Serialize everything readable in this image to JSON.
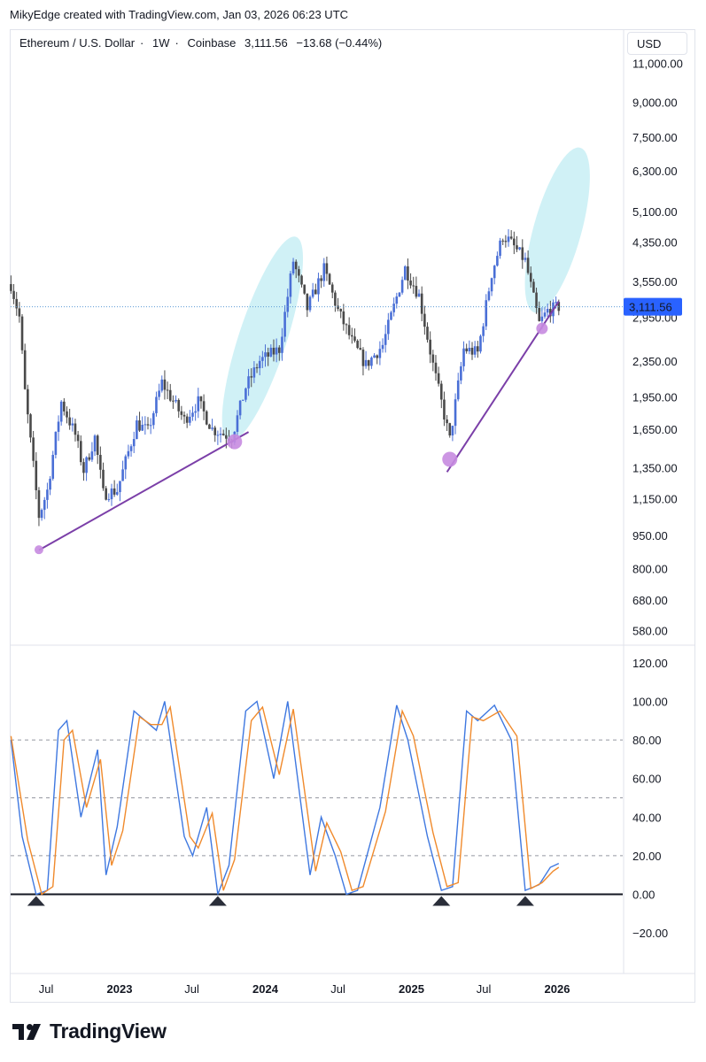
{
  "header": {
    "created_by": "MikyEdge created with TradingView.com, Jan 03, 2026 06:23 UTC"
  },
  "legend": {
    "symbol": "Ethereum / U.S. Dollar",
    "interval": "1W",
    "exchange": "Coinbase",
    "price": "3,111.56",
    "change": "−13.68 (−0.44%)"
  },
  "currency_button": "USD",
  "footer": {
    "brand": "TradingView"
  },
  "colors": {
    "up": "#4a6fd6",
    "down": "#4a4a4a",
    "trendline": "#7b3fa8",
    "touch_circle": "#c78be0",
    "ellipse": "#c8eef5",
    "stoch_k": "#3f78e0",
    "stoch_d": "#f08a2c",
    "price_label": "#2962ff"
  },
  "chart_data": [
    {
      "type": "candlestick",
      "scale": "log",
      "ylim": [
        540,
        11500
      ],
      "price_ticks": [
        "11,000.00",
        "9,000.00",
        "7,500.00",
        "6,300.00",
        "5,100.00",
        "4,350.00",
        "3,550.00",
        "2,950.00",
        "2,350.00",
        "1,950.00",
        "1,650.00",
        "1,350.00",
        "1,150.00",
        "950.00",
        "800.00",
        "680.00",
        "580.00"
      ],
      "price_tick_values": [
        11000,
        9000,
        7500,
        6300,
        5100,
        4350,
        3550,
        2950,
        2350,
        1950,
        1650,
        1350,
        1150,
        950,
        800,
        680,
        580
      ],
      "last_price_label": "3,111.56",
      "last_price": 3111.56,
      "time_labels": [
        {
          "text": "Jul",
          "date": "2022-07-01",
          "bold": false
        },
        {
          "text": "2023",
          "date": "2023-01-01",
          "bold": true
        },
        {
          "text": "Jul",
          "date": "2023-07-01",
          "bold": false
        },
        {
          "text": "2024",
          "date": "2024-01-01",
          "bold": true
        },
        {
          "text": "Jul",
          "date": "2024-07-01",
          "bold": false
        },
        {
          "text": "2025",
          "date": "2025-01-01",
          "bold": true
        },
        {
          "text": "Jul",
          "date": "2025-07-01",
          "bold": false
        },
        {
          "text": "2026",
          "date": "2026-01-01",
          "bold": true
        }
      ],
      "trendlines": [
        {
          "from": [
            "2022-06-13",
            880
          ],
          "to": [
            "2023-11-20",
            1625
          ]
        },
        {
          "from": [
            "2025-03-31",
            1320
          ],
          "to": [
            "2026-01-05",
            3200
          ]
        }
      ],
      "touch_points": [
        {
          "date": "2022-06-13",
          "price": 882,
          "size": "small"
        },
        {
          "date": "2023-10-16",
          "price": 1545,
          "size": "large"
        },
        {
          "date": "2025-04-07",
          "price": 1410,
          "size": "large"
        },
        {
          "date": "2025-11-24",
          "price": 2780,
          "size": "medium"
        }
      ],
      "highlight_ellipses": [
        {
          "from": [
            "2023-10-16",
            1690
          ],
          "to": [
            "2024-03-04",
            4100
          ]
        },
        {
          "from": [
            "2025-11-17",
            3300
          ],
          "to": [
            "2026-02-16",
            6500
          ]
        }
      ],
      "anchors": [
        [
          "2022-04-04",
          3500
        ],
        [
          "2022-04-25",
          2950
        ],
        [
          "2022-05-09",
          2000
        ],
        [
          "2022-06-13",
          1050
        ],
        [
          "2022-07-04",
          1200
        ],
        [
          "2022-08-08",
          1900
        ],
        [
          "2022-09-12",
          1600
        ],
        [
          "2022-10-03",
          1330
        ],
        [
          "2022-10-31",
          1580
        ],
        [
          "2022-11-21",
          1180
        ],
        [
          "2022-12-26",
          1200
        ],
        [
          "2023-02-13",
          1700
        ],
        [
          "2023-03-13",
          1630
        ],
        [
          "2023-04-17",
          2100
        ],
        [
          "2023-06-12",
          1730
        ],
        [
          "2023-07-17",
          1900
        ],
        [
          "2023-08-21",
          1650
        ],
        [
          "2023-10-09",
          1580
        ],
        [
          "2023-11-13",
          2050
        ],
        [
          "2023-12-18",
          2350
        ],
        [
          "2024-02-05",
          2500
        ],
        [
          "2024-03-11",
          3950
        ],
        [
          "2024-04-15",
          3080
        ],
        [
          "2024-05-27",
          3780
        ],
        [
          "2024-07-01",
          3050
        ],
        [
          "2024-08-05",
          2600
        ],
        [
          "2024-09-09",
          2300
        ],
        [
          "2024-10-21",
          2550
        ],
        [
          "2024-12-16",
          3800
        ],
        [
          "2025-01-20",
          3300
        ],
        [
          "2025-02-24",
          2300
        ],
        [
          "2025-04-07",
          1560
        ],
        [
          "2025-05-12",
          2500
        ],
        [
          "2025-06-16",
          2450
        ],
        [
          "2025-07-21",
          3700
        ],
        [
          "2025-08-18",
          4500
        ],
        [
          "2025-09-01",
          4400
        ],
        [
          "2025-10-13",
          3950
        ],
        [
          "2025-11-17",
          2850
        ],
        [
          "2025-12-08",
          3050
        ],
        [
          "2026-01-05",
          3111.56
        ]
      ]
    },
    {
      "type": "line",
      "title": "",
      "ylim": [
        -25,
        125
      ],
      "ticks": [
        "120.00",
        "100.00",
        "80.00",
        "60.00",
        "40.00",
        "20.00",
        "0.00",
        "−20.00"
      ],
      "tick_values": [
        120,
        100,
        80,
        60,
        40,
        20,
        0,
        -20
      ],
      "dashed_levels": [
        80,
        50,
        20
      ],
      "baseline": 0,
      "bottom_markers": [
        "2022-06-06",
        "2023-09-04",
        "2025-03-17",
        "2025-10-13"
      ],
      "series": [
        {
          "key": "k",
          "points": [
            [
              "2022-04-04",
              80
            ],
            [
              "2022-05-02",
              30
            ],
            [
              "2022-06-06",
              0
            ],
            [
              "2022-07-04",
              2
            ],
            [
              "2022-08-01",
              85
            ],
            [
              "2022-08-22",
              90
            ],
            [
              "2022-09-26",
              40
            ],
            [
              "2022-11-07",
              75
            ],
            [
              "2022-11-28",
              10
            ],
            [
              "2022-12-26",
              35
            ],
            [
              "2023-02-06",
              95
            ],
            [
              "2023-03-06",
              90
            ],
            [
              "2023-04-03",
              85
            ],
            [
              "2023-04-24",
              100
            ],
            [
              "2023-06-12",
              30
            ],
            [
              "2023-07-03",
              20
            ],
            [
              "2023-08-07",
              45
            ],
            [
              "2023-09-04",
              0
            ],
            [
              "2023-10-02",
              15
            ],
            [
              "2023-11-13",
              95
            ],
            [
              "2023-12-11",
              100
            ],
            [
              "2024-01-22",
              60
            ],
            [
              "2024-02-26",
              100
            ],
            [
              "2024-04-22",
              10
            ],
            [
              "2024-05-20",
              40
            ],
            [
              "2024-06-24",
              20
            ],
            [
              "2024-07-22",
              0
            ],
            [
              "2024-08-19",
              2
            ],
            [
              "2024-10-14",
              45
            ],
            [
              "2024-11-25",
              98
            ],
            [
              "2024-12-23",
              80
            ],
            [
              "2025-02-10",
              30
            ],
            [
              "2025-03-17",
              2
            ],
            [
              "2025-04-14",
              4
            ],
            [
              "2025-05-19",
              95
            ],
            [
              "2025-06-16",
              90
            ],
            [
              "2025-07-28",
              98
            ],
            [
              "2025-09-08",
              80
            ],
            [
              "2025-10-13",
              2
            ],
            [
              "2025-11-17",
              5
            ],
            [
              "2025-12-15",
              14
            ],
            [
              "2026-01-05",
              16
            ]
          ]
        },
        {
          "key": "d",
          "points": [
            [
              "2022-04-04",
              82
            ],
            [
              "2022-05-16",
              28
            ],
            [
              "2022-06-20",
              0
            ],
            [
              "2022-07-18",
              4
            ],
            [
              "2022-08-15",
              80
            ],
            [
              "2022-09-05",
              85
            ],
            [
              "2022-10-10",
              45
            ],
            [
              "2022-11-14",
              70
            ],
            [
              "2022-12-12",
              15
            ],
            [
              "2023-01-09",
              33
            ],
            [
              "2023-02-20",
              92
            ],
            [
              "2023-03-20",
              88
            ],
            [
              "2023-04-17",
              88
            ],
            [
              "2023-05-08",
              97
            ],
            [
              "2023-06-26",
              30
            ],
            [
              "2023-07-17",
              24
            ],
            [
              "2023-08-21",
              42
            ],
            [
              "2023-09-18",
              2
            ],
            [
              "2023-10-16",
              18
            ],
            [
              "2023-11-27",
              90
            ],
            [
              "2023-12-25",
              97
            ],
            [
              "2024-02-05",
              62
            ],
            [
              "2024-03-11",
              96
            ],
            [
              "2024-05-06",
              12
            ],
            [
              "2024-06-03",
              37
            ],
            [
              "2024-07-08",
              22
            ],
            [
              "2024-08-05",
              2
            ],
            [
              "2024-09-02",
              4
            ],
            [
              "2024-10-28",
              43
            ],
            [
              "2024-12-09",
              95
            ],
            [
              "2025-01-06",
              82
            ],
            [
              "2025-02-24",
              32
            ],
            [
              "2025-03-31",
              4
            ],
            [
              "2025-04-28",
              6
            ],
            [
              "2025-06-02",
              92
            ],
            [
              "2025-06-30",
              90
            ],
            [
              "2025-08-11",
              95
            ],
            [
              "2025-09-22",
              82
            ],
            [
              "2025-10-27",
              3
            ],
            [
              "2025-11-24",
              6
            ],
            [
              "2025-12-22",
              12
            ],
            [
              "2026-01-05",
              14
            ]
          ]
        }
      ]
    }
  ]
}
